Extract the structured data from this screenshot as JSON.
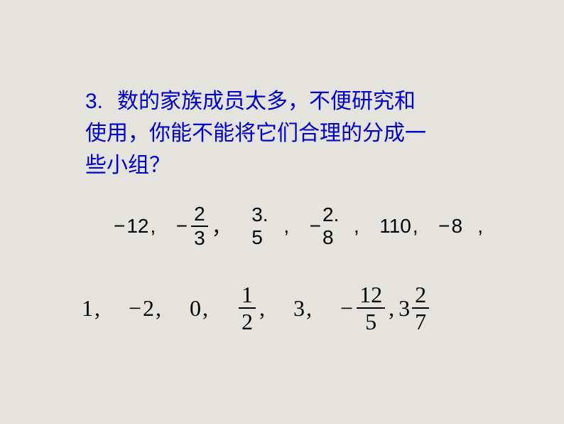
{
  "question": {
    "number": "3.",
    "line1_part1": "数的家族成员太多，不便研究和",
    "line2": "使用，你能不能将它们合理的分成一",
    "line3": "些小组？"
  },
  "row1": {
    "t1_neg": "−",
    "t1_val": "12",
    "t2_neg": "−",
    "t2_num": "2",
    "t2_den": "3",
    "t3": "3. 5",
    "t4_neg": "−",
    "t4_val": "2. 8",
    "t5": "110",
    "t6_neg": "−",
    "t6_val": "8"
  },
  "row2": {
    "t1": "1",
    "t2_neg": "−",
    "t2_val": "2",
    "t3": "0",
    "t4_num": "1",
    "t4_den": "2",
    "t5": "3",
    "t6_neg": "−",
    "t6_num": "12",
    "t6_den": "5",
    "t7_whole": "3",
    "t7_num": "2",
    "t7_den": "7"
  },
  "comma": ",",
  "comma_cn": "，",
  "colors": {
    "background": "#e4e3de",
    "question_text": "#0000cc",
    "math_text": "#000000"
  }
}
